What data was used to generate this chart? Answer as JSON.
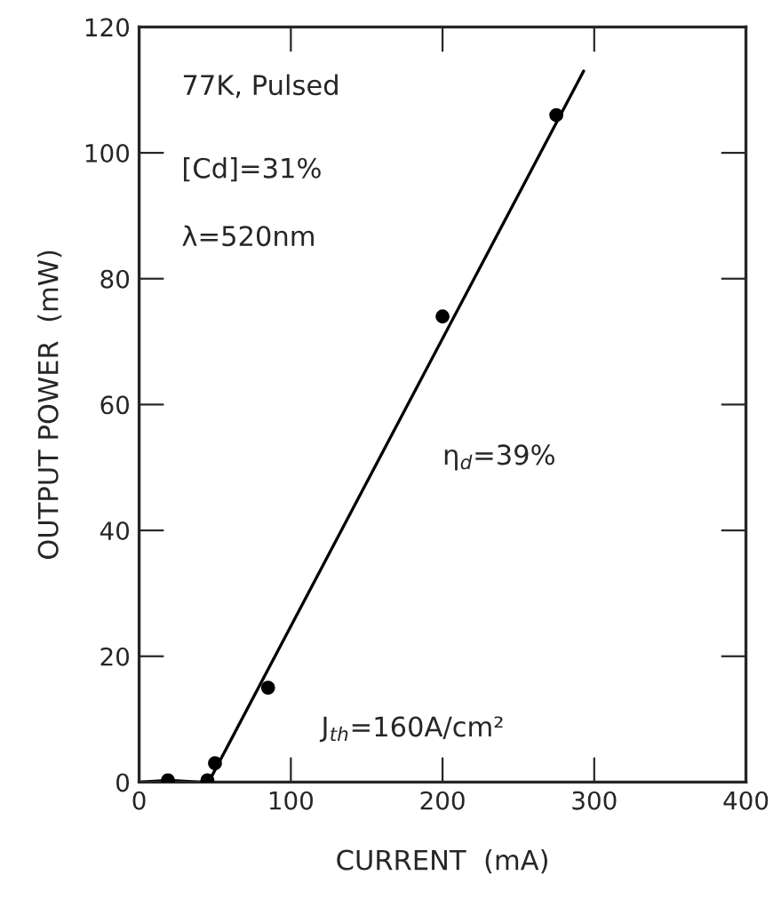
{
  "chart_data": {
    "type": "scatter",
    "xlabel": "CURRENT  (mA)",
    "ylabel": "OUTPUT POWER  (mW)",
    "xlim": [
      0,
      400
    ],
    "xticks": [
      0,
      100,
      200,
      300,
      400
    ],
    "ylim": [
      0,
      120
    ],
    "yticks": [
      0,
      20,
      40,
      60,
      80,
      100,
      120
    ],
    "grid": false,
    "series": [
      {
        "marker": "circle",
        "color": "#000000",
        "x": [
          19,
          45,
          50,
          85,
          200,
          275
        ],
        "values": [
          0.3,
          0.3,
          3,
          15,
          74,
          106
        ]
      },
      {
        "type": "line",
        "color": "#000000",
        "marker": "none",
        "line_style": "solid",
        "x": [
          0,
          20,
          40,
          48,
          293
        ],
        "values": [
          0,
          0.3,
          0,
          1,
          113
        ]
      }
    ],
    "annotations": [
      "77K, Pulsed",
      "[Cd]=31%",
      "λ=520nm",
      "η$_{d}$=39%",
      "J$_{th}$=160A/cm²"
    ]
  }
}
